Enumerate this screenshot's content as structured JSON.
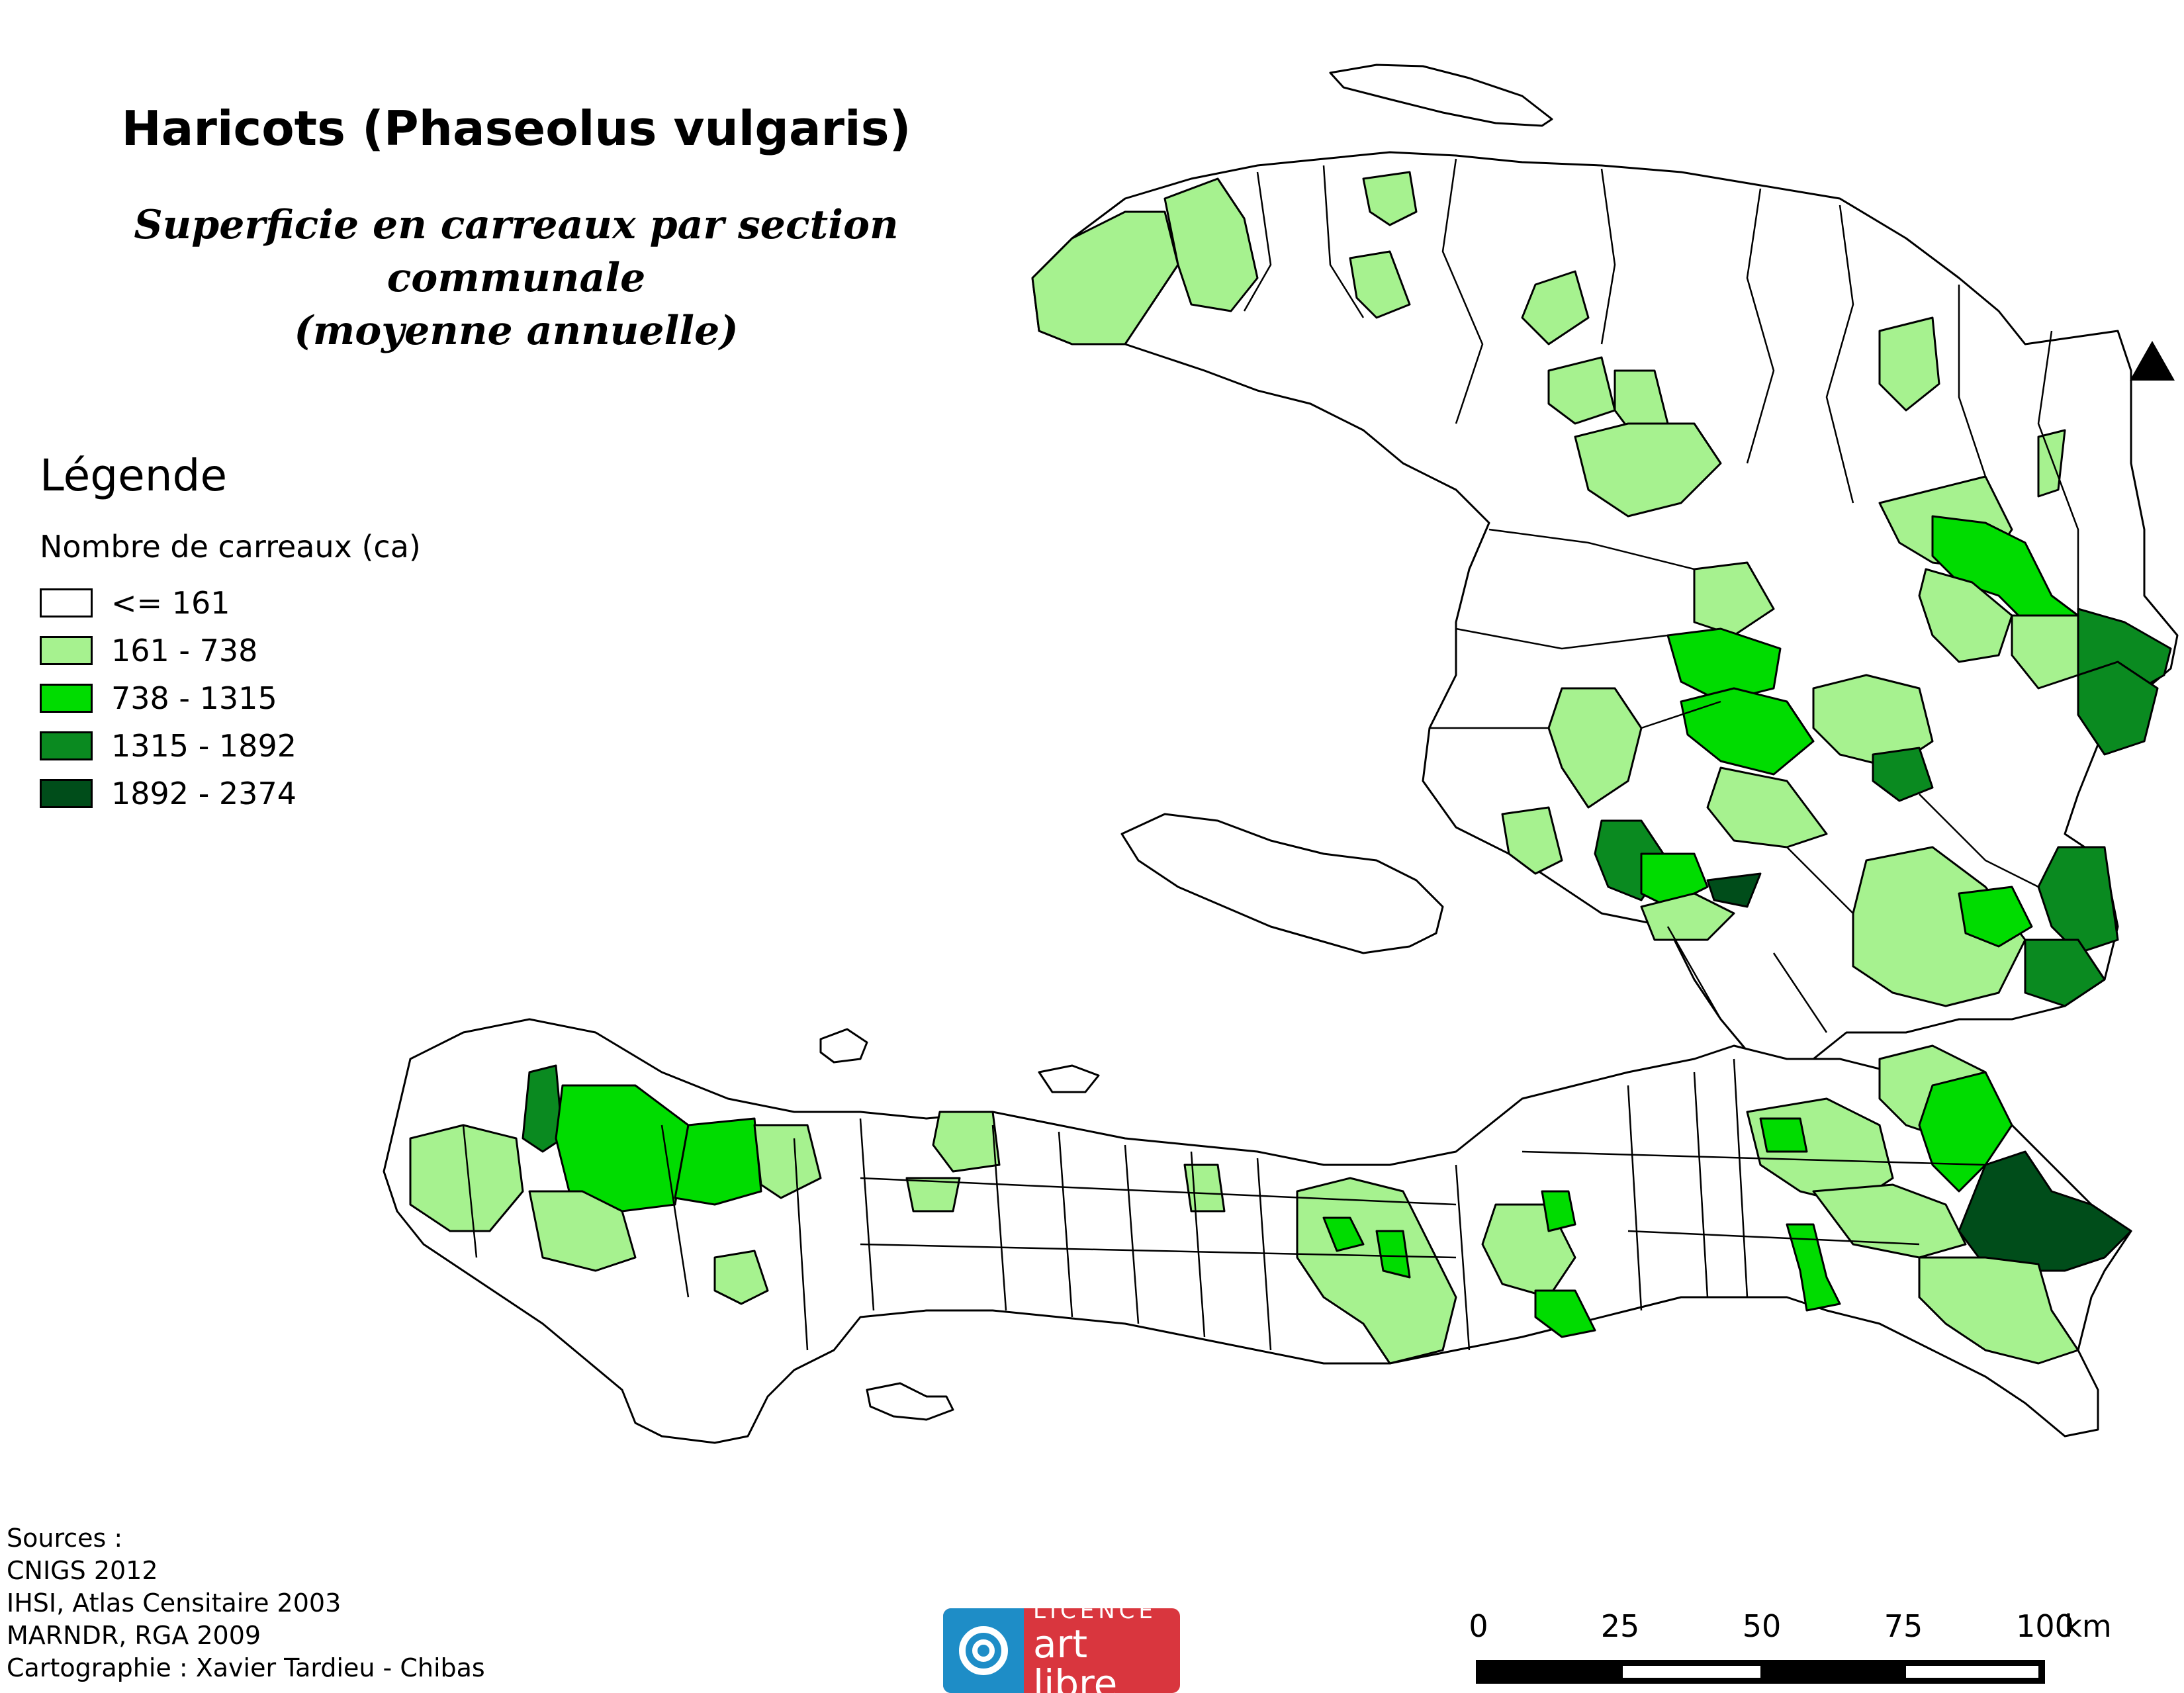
{
  "map": {
    "title": "Haricots (Phaseolus vulgaris)",
    "subtitle_line1": "Superficie en carreaux par section communale",
    "subtitle_line2": "(moyenne annuelle)"
  },
  "legend": {
    "heading": "Légende",
    "subheading": "Nombre de carreaux (ca)",
    "classes": [
      {
        "label": "<= 161",
        "color": "#ffffff"
      },
      {
        "label": "161 - 738",
        "color": "#a6f28f"
      },
      {
        "label": "738 - 1315",
        "color": "#00dc00"
      },
      {
        "label": "1315 - 1892",
        "color": "#0a8a20"
      },
      {
        "label": "1892 - 2374",
        "color": "#004d1a"
      }
    ]
  },
  "sources": {
    "line1": "Sources :",
    "line2": "CNIGS 2012",
    "line3": "IHSI, Atlas Censitaire 2003",
    "line4": "MARNDR, RGA 2009",
    "line5": "Cartographie : Xavier Tardieu - Chibas"
  },
  "licence": {
    "top": "LICENCE",
    "bottom": "art libre"
  },
  "scale": {
    "labels": [
      "0",
      "25",
      "50",
      "75",
      "100"
    ],
    "unit": "km"
  },
  "north_arrow": "north-arrow-icon"
}
